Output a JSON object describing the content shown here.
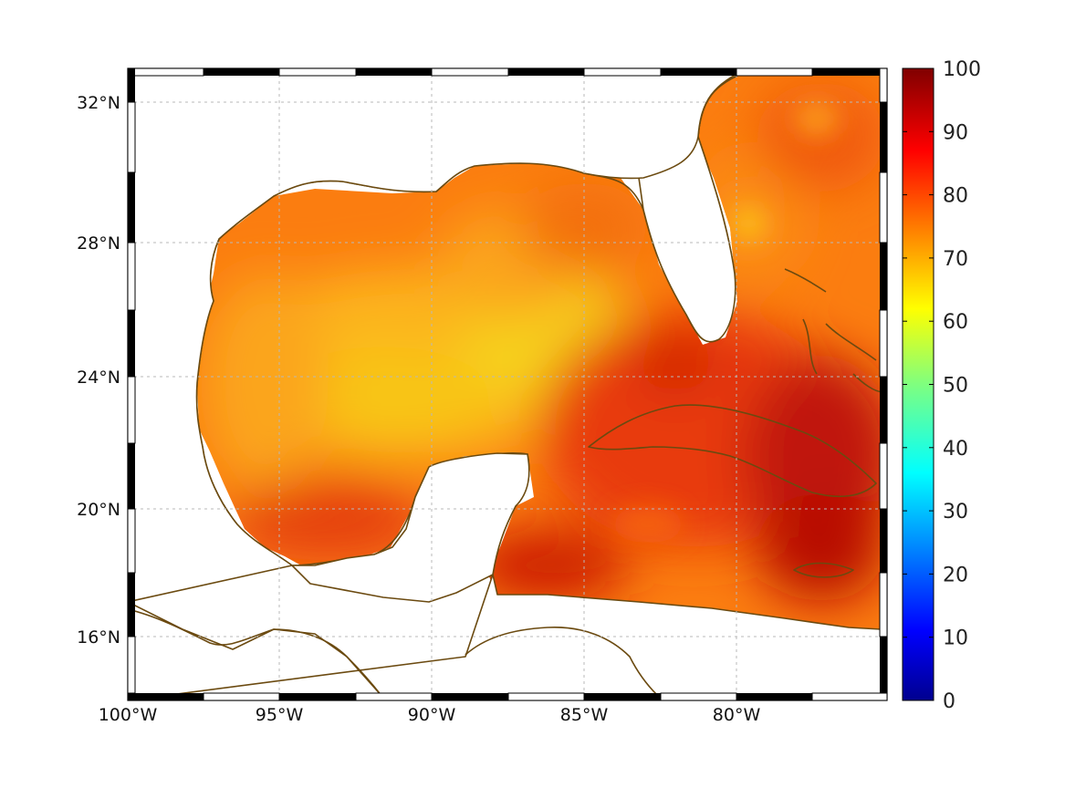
{
  "map": {
    "lon_ticks": [
      "100°W",
      "95°W",
      "90°W",
      "85°W",
      "80°W"
    ],
    "lat_ticks": [
      "32°N",
      "28°N",
      "24°N",
      "20°N",
      "16°N"
    ]
  },
  "colorbar": {
    "min": 0,
    "max": 100,
    "labels": [
      "100",
      "90",
      "80",
      "70",
      "60",
      "50",
      "40",
      "30",
      "20",
      "10",
      "0"
    ],
    "colormap": "jet"
  },
  "colors": {
    "coastline": "#6b4a10",
    "field_low": "#f6d21a",
    "field_mid": "#fb7d10",
    "field_high": "#b80f05"
  }
}
